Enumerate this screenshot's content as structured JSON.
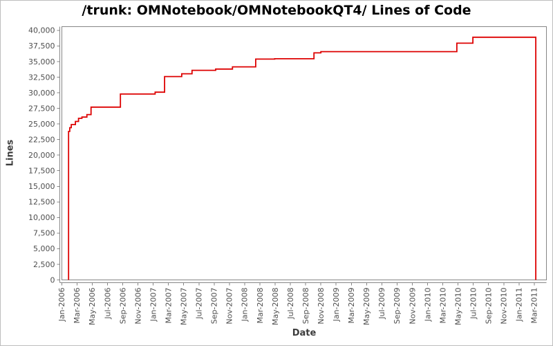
{
  "title": "/trunk: OMNotebook/OMNotebookQT4/ Lines of Code",
  "chart_data": {
    "type": "line",
    "line_style": "step-after",
    "title": "/trunk: OMNotebook/OMNotebookQT4/ Lines of Code",
    "xlabel": "Date",
    "ylabel": "Lines",
    "grid": false,
    "legend_position": "none",
    "line_color": "#dd0000",
    "axis_color": "#858585",
    "tick_label_color": "#4d4d4d",
    "ylim": [
      0,
      40600
    ],
    "y_ticks": [
      0,
      2500,
      5000,
      7500,
      10000,
      12500,
      15000,
      17500,
      20000,
      22500,
      25000,
      27500,
      30000,
      32500,
      35000,
      37500,
      40000
    ],
    "x_unit": "months since Jan-2006; tick spacing = 2 months",
    "x_tick_labels": [
      "Jan-2006",
      "Mar-2006",
      "May-2006",
      "Jul-2006",
      "Sep-2006",
      "Nov-2006",
      "Jan-2007",
      "Mar-2007",
      "May-2007",
      "Jul-2007",
      "Sep-2007",
      "Nov-2007",
      "Jan-2008",
      "Mar-2008",
      "May-2008",
      "Jul-2008",
      "Sep-2008",
      "Nov-2008",
      "Jan-2009",
      "Mar-2009",
      "May-2009",
      "Jul-2009",
      "Sep-2009",
      "Nov-2009",
      "Jan-2010",
      "Mar-2010",
      "May-2010",
      "Jul-2010",
      "Sep-2010",
      "Nov-2010",
      "Jan-2011",
      "Mar-2011"
    ],
    "series": [
      {
        "name": "lines of code",
        "points_note": "[months since Jan-2006, lines]; step-after curve; rises vertically from 0 at first point and drops vertically to 0 at last point",
        "points": [
          [
            0.9,
            23800
          ],
          [
            1.05,
            24400
          ],
          [
            1.25,
            24900
          ],
          [
            1.8,
            25400
          ],
          [
            2.2,
            25900
          ],
          [
            2.65,
            26100
          ],
          [
            3.3,
            26500
          ],
          [
            3.85,
            27700
          ],
          [
            7.7,
            29800
          ],
          [
            12.25,
            30100
          ],
          [
            13.5,
            32600
          ],
          [
            15.75,
            33050
          ],
          [
            17.1,
            33600
          ],
          [
            20.2,
            33800
          ],
          [
            22.4,
            34150
          ],
          [
            25.45,
            35400
          ],
          [
            27.95,
            35450
          ],
          [
            33.1,
            36400
          ],
          [
            34.0,
            36600
          ],
          [
            51.85,
            37950
          ],
          [
            53.95,
            38900
          ],
          [
            62.2,
            0
          ]
        ]
      }
    ]
  }
}
